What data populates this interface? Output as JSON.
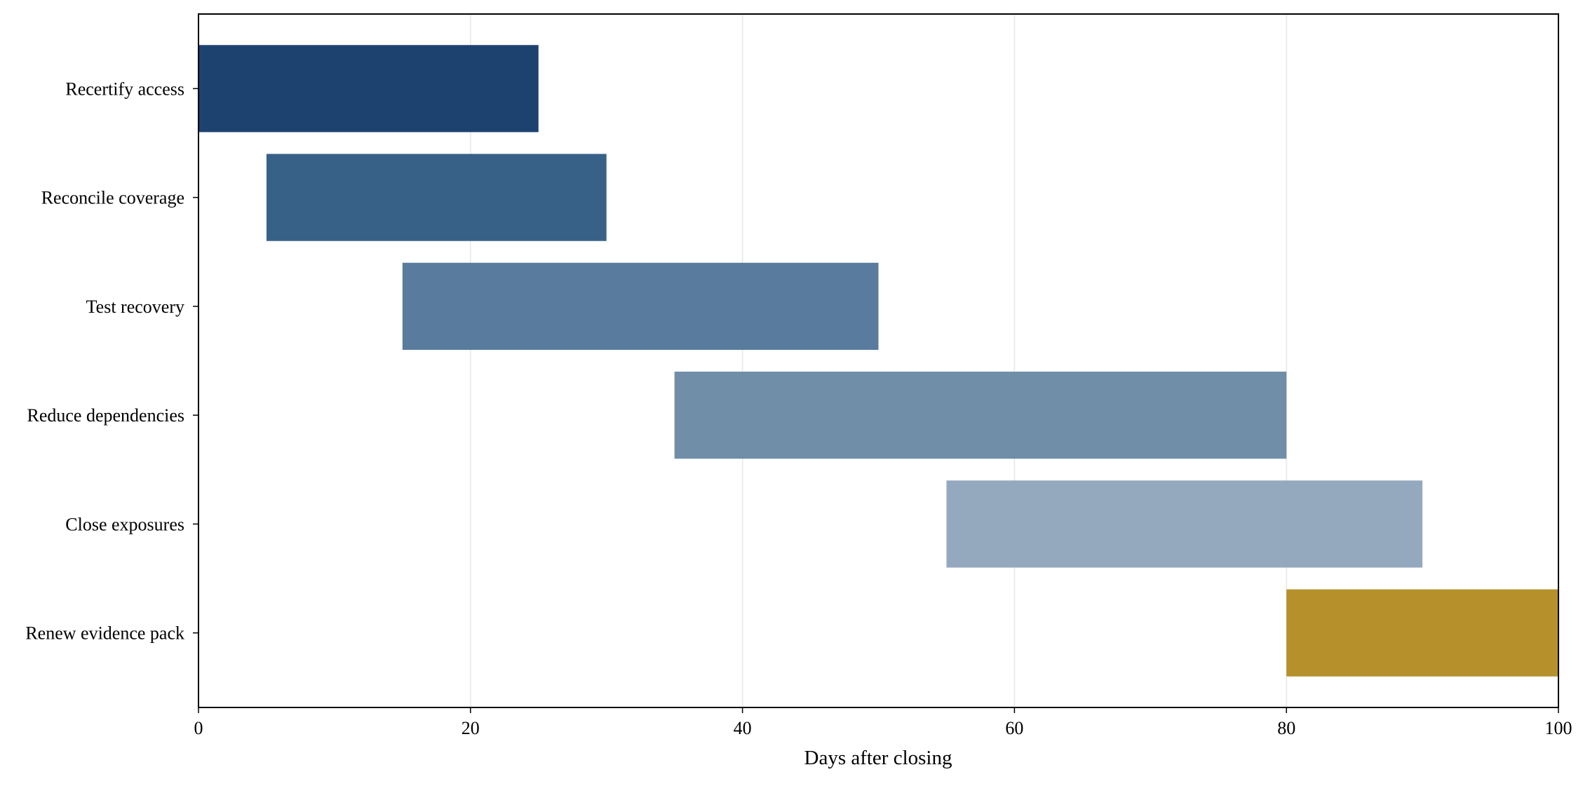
{
  "chart_data": {
    "type": "gantt",
    "xlabel": "Days after closing",
    "categories": [
      "Recertify access",
      "Reconcile coverage",
      "Test recovery",
      "Reduce dependencies",
      "Close exposures",
      "Renew evidence pack"
    ],
    "starts": [
      0,
      5,
      15,
      35,
      55,
      80
    ],
    "ends": [
      25,
      30,
      50,
      80,
      90,
      100
    ],
    "colors": [
      "#143a6a",
      "#305b83",
      "#52769a",
      "#6b89a6",
      "#91a6bb",
      "#b38b22"
    ],
    "xlim": [
      0,
      100
    ],
    "xticks": [
      0,
      20,
      40,
      60,
      80,
      100
    ],
    "grid": true
  }
}
